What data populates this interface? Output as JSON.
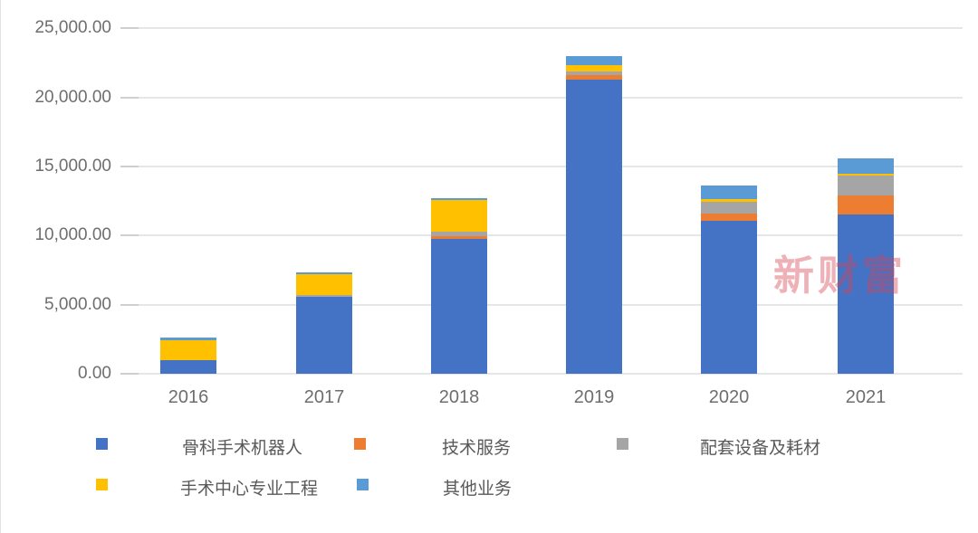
{
  "watermark": {
    "text": "新财富"
  },
  "chart_data": {
    "type": "bar",
    "stacked": true,
    "title": "",
    "xlabel": "",
    "ylabel": "",
    "categories": [
      "2016",
      "2017",
      "2018",
      "2019",
      "2020",
      "2021"
    ],
    "series": [
      {
        "name": "骨科手术机器人",
        "color": "#4472C4",
        "values": [
          1000,
          5600,
          9750,
          21300,
          11100,
          11500
        ]
      },
      {
        "name": "技术服务",
        "color": "#ED7D31",
        "values": [
          0,
          0,
          200,
          350,
          500,
          1400
        ]
      },
      {
        "name": "配套设备及耗材",
        "color": "#A5A5A5",
        "values": [
          0,
          80,
          330,
          240,
          850,
          1450
        ]
      },
      {
        "name": "手术中心专业工程",
        "color": "#FFC000",
        "values": [
          1450,
          1520,
          2280,
          460,
          200,
          130
        ]
      },
      {
        "name": "其他业务",
        "color": "#5B9BD5",
        "values": [
          170,
          130,
          180,
          650,
          950,
          1100
        ]
      }
    ],
    "ylim": [
      0,
      25000
    ],
    "ytick_step": 5000,
    "ytick_labels": [
      "0.00",
      "5,000.00",
      "10,000.00",
      "15,000.00",
      "20,000.00",
      "25,000.00"
    ],
    "grid": true,
    "legend_position": "bottom"
  },
  "colors": {
    "gridline": "#e6e6e6",
    "tick": "#cfcfcf",
    "axis_text": "#6e6e6e",
    "legend_text": "#595959",
    "watermark": "rgba(214,69,86,0.42)"
  }
}
